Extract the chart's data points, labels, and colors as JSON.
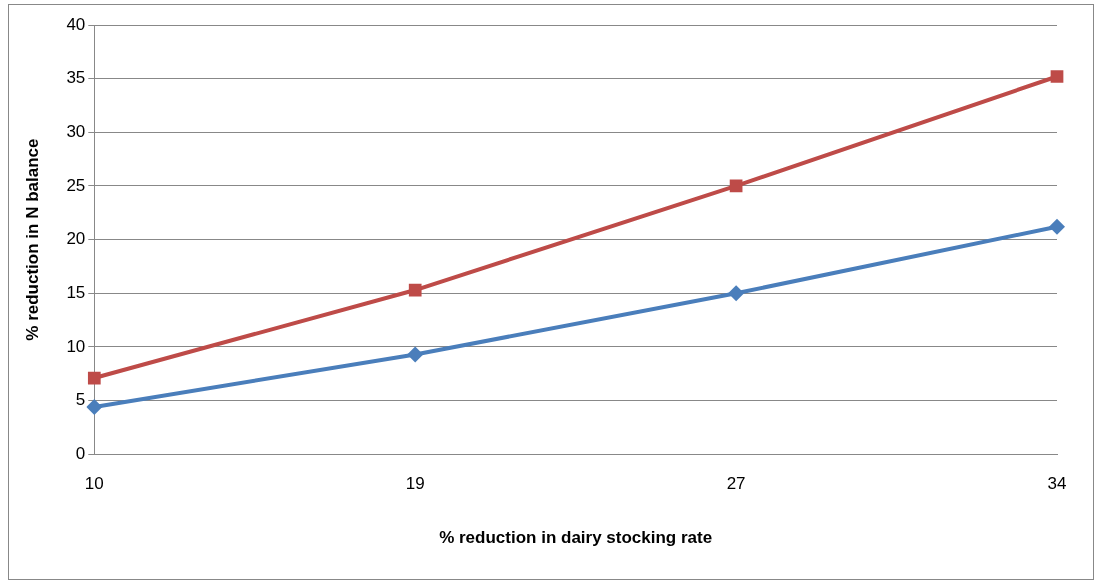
{
  "chart_data": {
    "type": "line",
    "xlabel": "% reduction in dairy stocking rate",
    "ylabel": "% reduction in N balance",
    "categories": [
      "10",
      "19",
      "27",
      "34"
    ],
    "series": [
      {
        "color": "#4a7ebb",
        "marker": "diamond",
        "values": [
          4.4,
          9.3,
          15.0,
          21.2
        ]
      },
      {
        "color": "#be4b48",
        "marker": "square",
        "values": [
          7.1,
          15.3,
          25.0,
          35.2
        ]
      }
    ],
    "ylim": [
      0,
      40
    ],
    "yticks": [
      0,
      5,
      10,
      15,
      20,
      25,
      30,
      35,
      40
    ],
    "grid": "y",
    "legend": false,
    "line_style": "solid"
  }
}
